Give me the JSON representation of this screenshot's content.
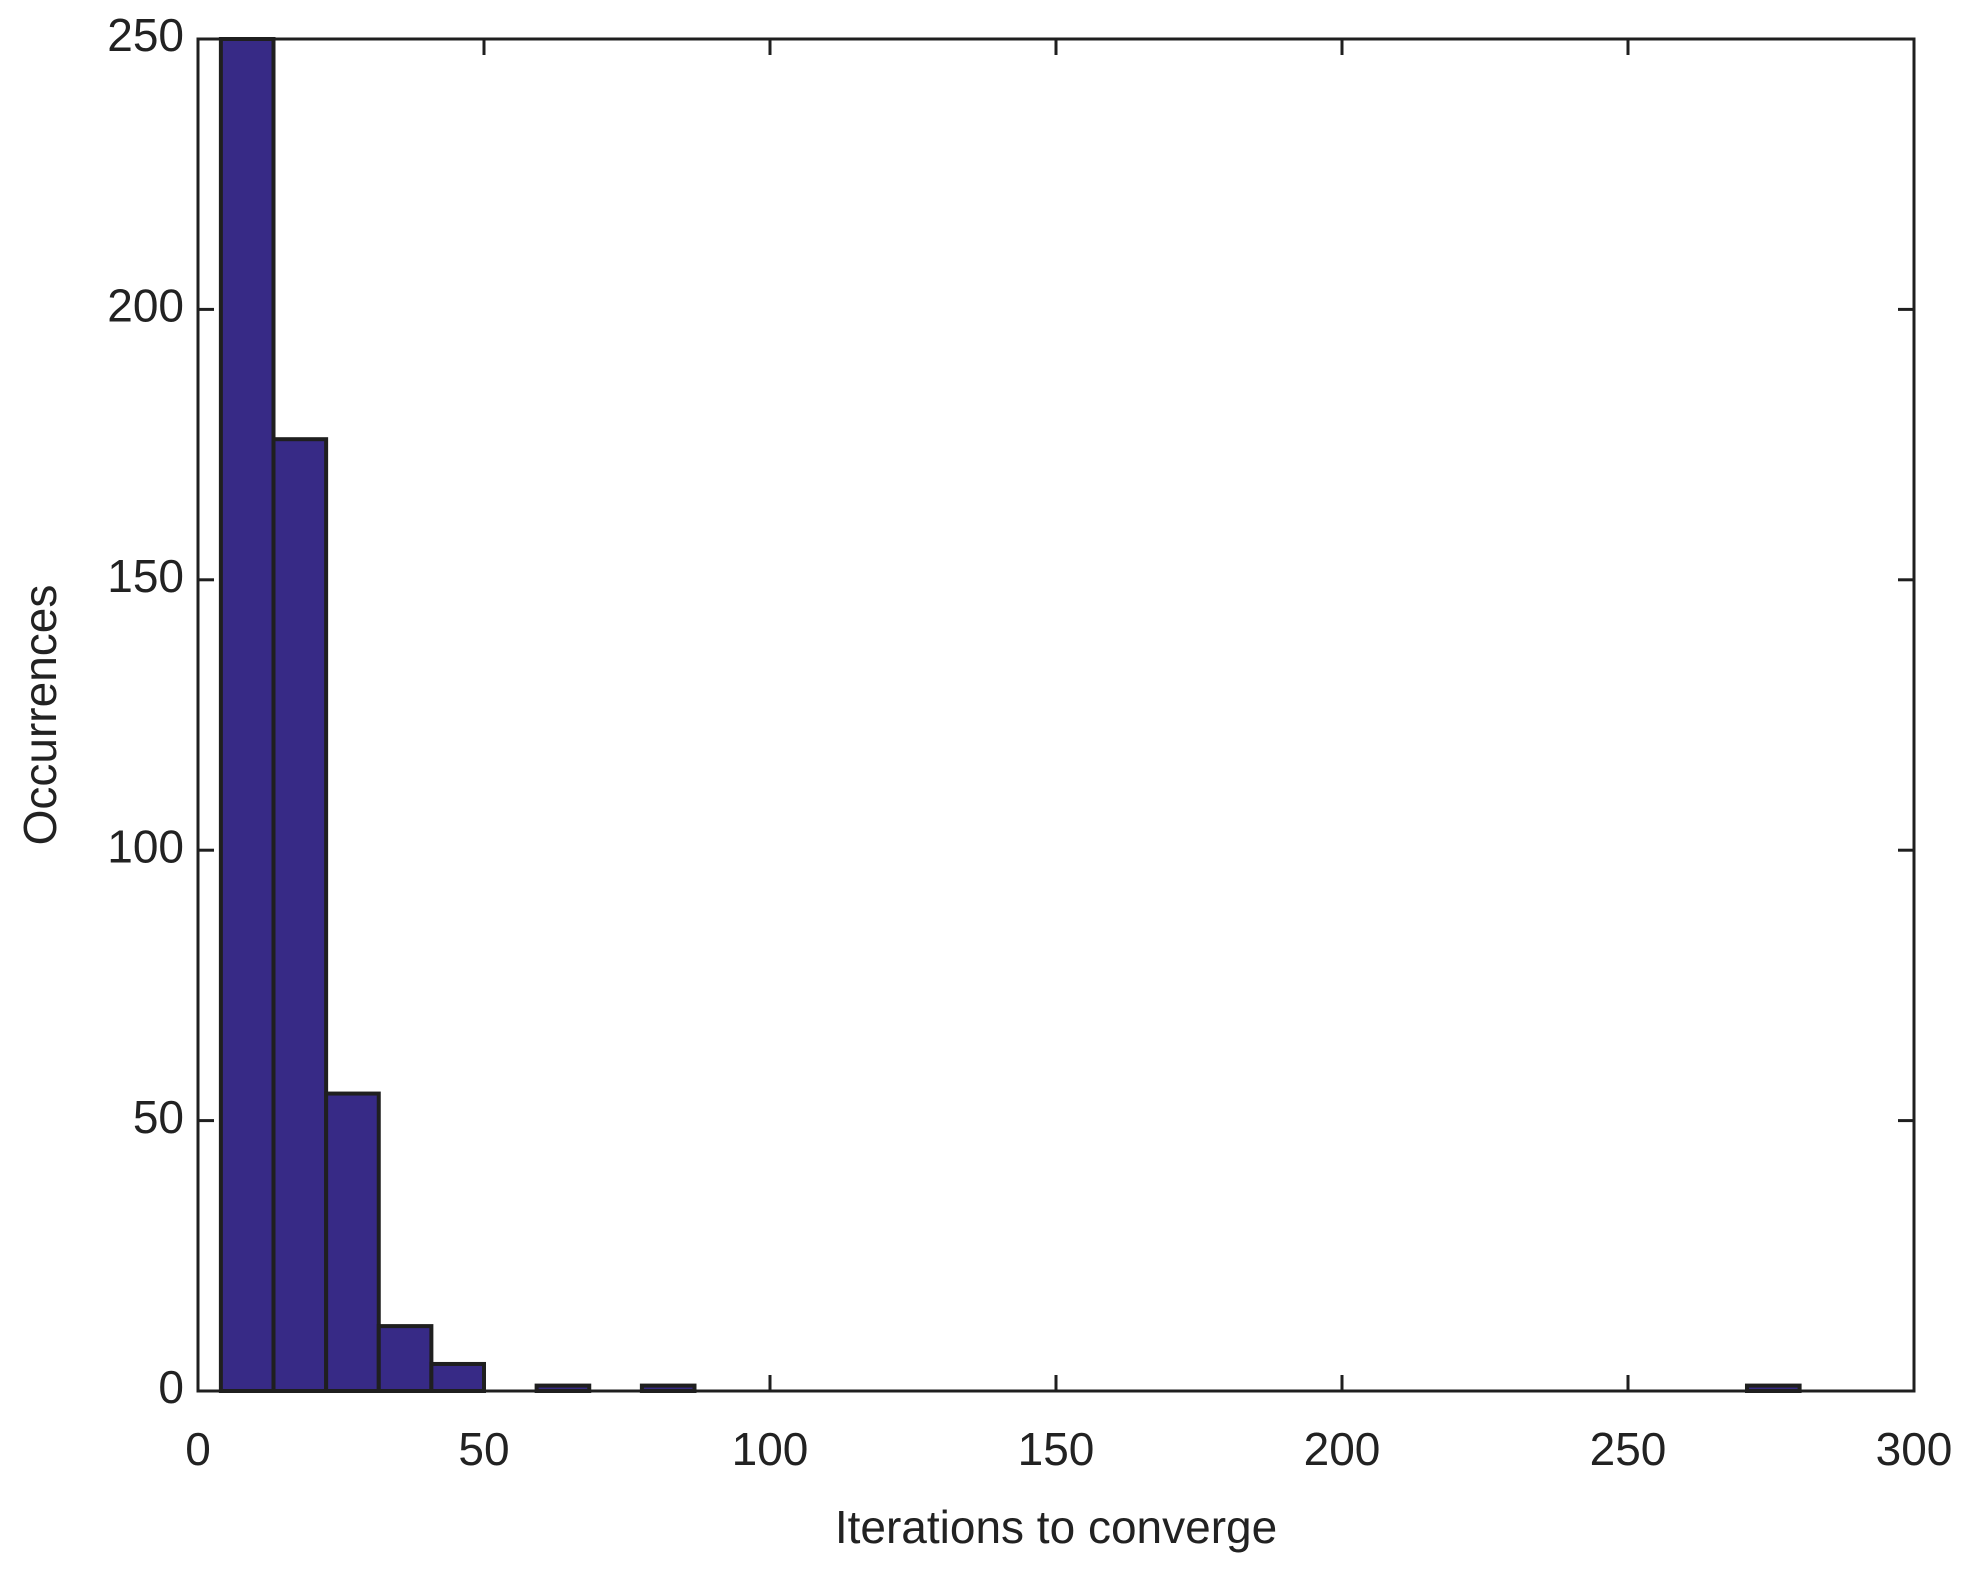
{
  "chart_data": {
    "type": "histogram",
    "xlabel": "Iterations to converge",
    "ylabel": "Occurrences",
    "bins": [
      4,
      13.2,
      22.4,
      31.6,
      40.8,
      50,
      59.2,
      68.4,
      77.6,
      86.8,
      96,
      105.2,
      114.4,
      123.6,
      132.8,
      142,
      151.2,
      160.4,
      169.6,
      178.8,
      188,
      197.2,
      206.4,
      215.6,
      224.8,
      234,
      243.2,
      252.4,
      261.6,
      270.8,
      280
    ],
    "values": [
      250,
      176,
      55,
      12,
      5,
      0,
      1,
      0,
      1,
      0,
      0,
      0,
      0,
      0,
      0,
      0,
      0,
      0,
      0,
      0,
      0,
      0,
      0,
      0,
      0,
      0,
      0,
      0,
      0,
      1
    ],
    "color": "#372a86",
    "xlim": [
      0,
      300
    ],
    "xticks": [
      0,
      50,
      100,
      150,
      200,
      250,
      300
    ],
    "ylim": [
      0,
      250
    ],
    "yticks": [
      0,
      50,
      100,
      150,
      200,
      250
    ]
  }
}
